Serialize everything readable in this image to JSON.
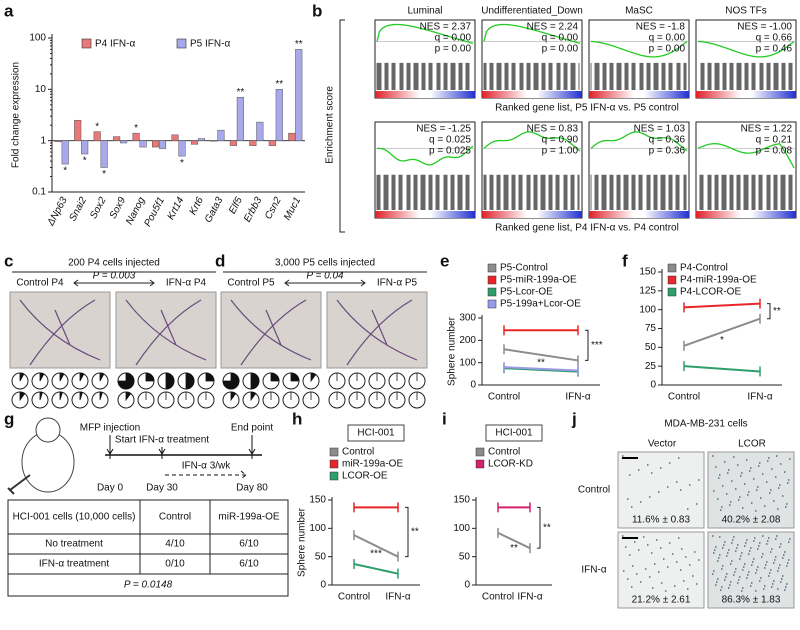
{
  "chart_data": [
    {
      "label": "a",
      "type": "bar",
      "y_label": "Fold change expression",
      "log_scale": true,
      "ylim": [
        0.1,
        100
      ],
      "yticks": [
        0.1,
        1,
        10,
        100
      ],
      "categories": [
        "ΔNp63",
        "Snai2",
        "Sox2",
        "Sox9",
        "Nanog",
        "Pou5f1",
        "Krt14",
        "Krt6",
        "Gata3",
        "Elf5",
        "Erbb3",
        "Csn2",
        "Muc1"
      ],
      "category_colors": [
        "#d42a2a",
        "#d42a2a",
        "#d42a2a",
        "#d42a2a",
        "#d42a2a",
        "#d42a2a",
        "#d42a2a",
        "#2a2ad4",
        "#2a2ad4",
        "#2a2ad4",
        "#2a2ad4",
        "#2a2ad4",
        "#2a2ad4"
      ],
      "series": [
        {
          "name": "P4 IFN-α",
          "color": "#e8787a",
          "values": [
            0.95,
            2.5,
            1.5,
            1.2,
            1.4,
            0.75,
            1.3,
            0.85,
            1.0,
            0.8,
            0.8,
            0.8,
            1.4
          ],
          "stars": [
            null,
            null,
            "*",
            null,
            "*",
            null,
            null,
            null,
            null,
            null,
            null,
            null,
            null
          ]
        },
        {
          "name": "P5 IFN-α",
          "color": "#a8a8ec",
          "values": [
            0.35,
            0.55,
            0.3,
            0.9,
            0.75,
            0.7,
            0.5,
            1.1,
            1.6,
            7,
            2.3,
            10,
            60
          ],
          "stars": [
            "*",
            "*",
            "*",
            null,
            null,
            null,
            "*",
            null,
            null,
            "**",
            null,
            "**",
            "**"
          ]
        }
      ]
    },
    {
      "label": "e",
      "type": "line",
      "y_label": "Sphere number",
      "categories": [
        "Control",
        "IFN-α"
      ],
      "ylim": [
        0,
        300
      ],
      "yticks": [
        0,
        100,
        200,
        300
      ],
      "annotations": [
        "**",
        "***"
      ],
      "series": [
        {
          "name": "P5-Control",
          "color": "#8c8c8c",
          "values": [
            160,
            110
          ]
        },
        {
          "name": "P5-miR-199a-OE",
          "color": "#e8262a",
          "values": [
            245,
            245
          ]
        },
        {
          "name": "P5-Lcor-OE",
          "color": "#2e9e6b",
          "values": [
            75,
            60
          ]
        },
        {
          "name": "P5-199a+Lcor-OE",
          "color": "#9a9ae6",
          "values": [
            80,
            65
          ]
        }
      ]
    },
    {
      "label": "f",
      "type": "line",
      "categories": [
        "Control",
        "IFN-α"
      ],
      "ylim": [
        0,
        150
      ],
      "yticks": [
        0,
        25,
        50,
        75,
        100,
        125,
        150
      ],
      "annotations": [
        "*",
        "**"
      ],
      "series": [
        {
          "name": "P4-Control",
          "color": "#8c8c8c",
          "values": [
            52,
            88
          ]
        },
        {
          "name": "P4-miR-199a-OE",
          "color": "#e8262a",
          "values": [
            103,
            108
          ]
        },
        {
          "name": "P4-LCOR-OE",
          "color": "#2e9e6b",
          "values": [
            25,
            18
          ]
        }
      ]
    },
    {
      "label": "h",
      "type": "line",
      "title": "HCI-001",
      "y_label": "Sphere number",
      "categories": [
        "Control",
        "IFN-α"
      ],
      "ylim": [
        0,
        150
      ],
      "yticks": [
        0,
        50,
        100,
        150
      ],
      "annotations": [
        "***",
        "**"
      ],
      "series": [
        {
          "name": "Control",
          "color": "#8c8c8c",
          "values": [
            88,
            50
          ]
        },
        {
          "name": "miR-199a-OE",
          "color": "#e8262a",
          "values": [
            137,
            137
          ]
        },
        {
          "name": "LCOR-OE",
          "color": "#2e9e6b",
          "values": [
            37,
            20
          ]
        }
      ]
    },
    {
      "label": "i",
      "type": "line",
      "title": "HCI-001",
      "categories": [
        "Control",
        "IFN-α"
      ],
      "ylim": [
        0,
        150
      ],
      "yticks": [
        0,
        50,
        100,
        150
      ],
      "annotations": [
        "**",
        "**"
      ],
      "series": [
        {
          "name": "Control",
          "color": "#8c8c8c",
          "values": [
            92,
            65
          ]
        },
        {
          "name": "LCOR-KD",
          "color": "#d4206a",
          "values": [
            137,
            137
          ]
        }
      ]
    }
  ],
  "gsea": {
    "label": "b",
    "y_label": "Enrichment score",
    "rows": [
      {
        "caption": "Ranked gene list, P5 IFN-α vs. P5 control",
        "plots": [
          {
            "title": "Luminal",
            "stats": [
              "NES = 2.37",
              "q = 0.00",
              "p = 0.00"
            ]
          },
          {
            "title": "Undifferentiated_Down",
            "stats": [
              "NES = 2.24",
              "q = 0.00",
              "p = 0.00"
            ]
          },
          {
            "title": "MaSC",
            "stats": [
              "NES = -1.8",
              "q = 0.00",
              "p = 0.00"
            ]
          },
          {
            "title": "NOS TFs",
            "stats": [
              "NES = -1.00",
              "q = 0.66",
              "p = 0.46"
            ]
          }
        ]
      },
      {
        "caption": "Ranked gene list, P4 IFN-α vs. P4 control",
        "plots": [
          {
            "stats": [
              "NES = -1.25",
              "q = 0.025",
              "p = 0.025"
            ]
          },
          {
            "stats": [
              "NES = 0.83",
              "q = 0.90",
              "p = 1.00"
            ]
          },
          {
            "stats": [
              "NES = 1.03",
              "q = 0.36",
              "p = 0.36"
            ]
          },
          {
            "stats": [
              "NES = 1.22",
              "q = 0.21",
              "p = 0.08"
            ]
          }
        ]
      }
    ]
  },
  "xenografts": [
    {
      "label": "c",
      "title": "200 P4 cells injected",
      "p_value": "P = 0.003",
      "groups": [
        {
          "name": "Control P4",
          "fractions": [
            0.08,
            0.08,
            0.08,
            0.08,
            0.08,
            0.1,
            0.05,
            0.05,
            0.05,
            0.05
          ]
        },
        {
          "name": "IFN-α P4",
          "fractions": [
            0.75,
            0.25,
            0.5,
            0.5,
            0.25,
            0.1,
            0,
            0,
            0,
            0
          ]
        }
      ]
    },
    {
      "label": "d",
      "title": "3,000 P5 cells injected",
      "p_value": "P = 0.04",
      "groups": [
        {
          "name": "Control P5",
          "fractions": [
            0.75,
            0.5,
            0.25,
            0.25,
            0.1,
            0.1,
            0.1,
            0,
            0,
            0
          ]
        },
        {
          "name": "IFN-α P5",
          "fractions": [
            0,
            0,
            0,
            0,
            0,
            0,
            0,
            0,
            0,
            0
          ]
        }
      ]
    }
  ],
  "experiment": {
    "label": "g",
    "events": [
      {
        "text": "MFP injection",
        "day": "Day 0"
      },
      {
        "text": "Start IFN-α treatment",
        "day": "Day 30"
      },
      {
        "text": "End point",
        "day": "Day 80"
      }
    ],
    "treatment": "IFN-α 3/wk",
    "table": {
      "header": [
        "HCI-001 cells (10,000 cells)",
        "Control",
        "miR-199a-OE"
      ],
      "rows": [
        [
          "No treatment",
          "4/10",
          "6/10"
        ],
        [
          "IFN-α treatment",
          "0/10",
          "6/10"
        ]
      ],
      "footer": "P = 0.0148"
    }
  },
  "invasion": {
    "label": "j",
    "title": "MDA-MB-231 cells",
    "columns": [
      "Vector",
      "LCOR"
    ],
    "rows": [
      {
        "name": "Control",
        "values": [
          "11.6% ± 0.83",
          "40.2% ± 2.08"
        ]
      },
      {
        "name": "IFN-α",
        "values": [
          "21.2% ± 2.61",
          "86.3% ± 1.83"
        ]
      }
    ]
  }
}
